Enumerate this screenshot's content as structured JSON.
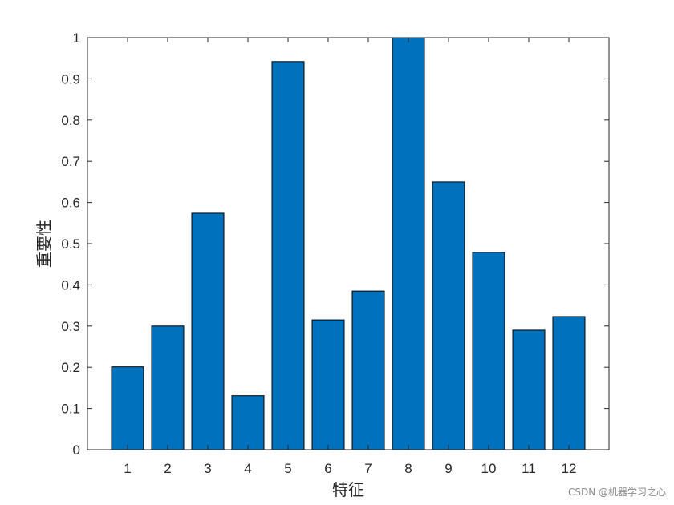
{
  "chart_data": {
    "type": "bar",
    "categories": [
      "1",
      "2",
      "3",
      "4",
      "5",
      "6",
      "7",
      "8",
      "9",
      "10",
      "11",
      "12"
    ],
    "values": [
      0.201,
      0.3,
      0.574,
      0.131,
      0.942,
      0.315,
      0.385,
      1.0,
      0.65,
      0.479,
      0.29,
      0.323
    ],
    "xlabel": "特征",
    "ylabel": "重要性",
    "ylim": [
      0,
      1
    ],
    "yticks": [
      "0",
      "0.1",
      "0.2",
      "0.3",
      "0.4",
      "0.5",
      "0.6",
      "0.7",
      "0.8",
      "0.9",
      "1"
    ],
    "ytick_values": [
      0,
      0.1,
      0.2,
      0.3,
      0.4,
      0.5,
      0.6,
      0.7,
      0.8,
      0.9,
      1.0
    ],
    "grid": false,
    "bar_color": "#0072BD",
    "bar_edge_color": "#000000"
  },
  "watermark": "CSDN @机器学习之心"
}
